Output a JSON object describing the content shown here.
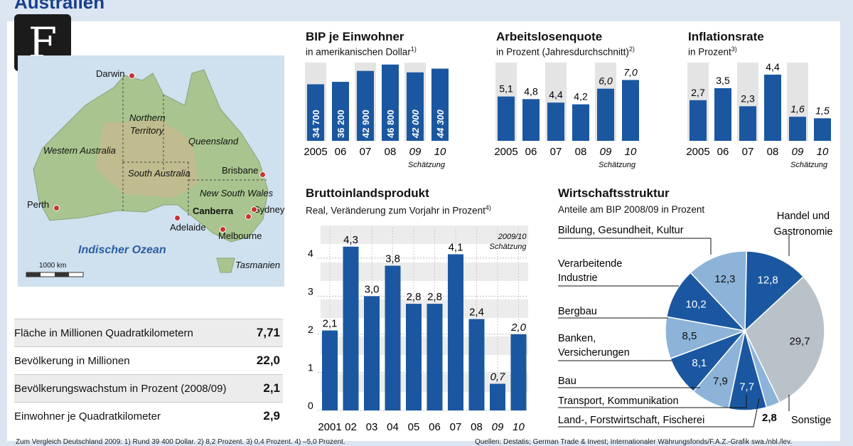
{
  "header": {
    "title": "Australien",
    "logo_letter": "F"
  },
  "map": {
    "labels": {
      "darwin": "Darwin",
      "northern": "Northern",
      "territory": "Territory",
      "queensland": "Queensland",
      "western": "Western Australia",
      "south": "South Australia",
      "brisbane": "Brisbane",
      "nsw": "New South Wales",
      "perth": "Perth",
      "canberra": "Canberra",
      "sydney": "Sydney",
      "adelaide": "Adelaide",
      "melbourne": "Melbourne",
      "ocean": "Indischer Ozean",
      "tasmanien": "Tasmanien",
      "scale": "1000 km"
    }
  },
  "facts": [
    {
      "label": "Fläche in Millionen Quadratkilometern",
      "value": "7,71"
    },
    {
      "label": "Bevölkerung in Millionen",
      "value": "22,0"
    },
    {
      "label": "Bevölkerungswachstum in Prozent (2008/09)",
      "value": "2,1"
    },
    {
      "label": "Einwohner je Quadratkilometer",
      "value": "2,9"
    }
  ],
  "chart_data": [
    {
      "type": "bar",
      "title": "BIP je Einwohner",
      "subtitle": "in amerikanischen Dollar",
      "footnote_mark": "1)",
      "categories": [
        "2005",
        "06",
        "07",
        "08",
        "09",
        "10"
      ],
      "values": [
        34700,
        36200,
        42900,
        46800,
        42000,
        44300
      ],
      "labels": [
        "34 700",
        "36 200",
        "42 900",
        "46 800",
        "42 000",
        "44 300"
      ],
      "estimate_label": "Schätzung",
      "ylim": [
        0,
        48000
      ]
    },
    {
      "type": "bar",
      "title": "Arbeitslosenquote",
      "subtitle": "in Prozent (Jahresdurchschnitt)",
      "footnote_mark": "2)",
      "categories": [
        "2005",
        "06",
        "07",
        "08",
        "09",
        "10"
      ],
      "values": [
        5.1,
        4.8,
        4.4,
        4.2,
        6.0,
        7.0
      ],
      "labels": [
        "5,1",
        "4,8",
        "4,4",
        "4,2",
        "6,0",
        "7,0"
      ],
      "estimate_label": "Schätzung",
      "ylim": [
        0,
        9
      ]
    },
    {
      "type": "bar",
      "title": "Inflationsrate",
      "subtitle": "in Prozent",
      "footnote_mark": "3)",
      "categories": [
        "2005",
        "06",
        "07",
        "08",
        "09",
        "10"
      ],
      "values": [
        2.7,
        3.5,
        2.3,
        4.4,
        1.6,
        1.5
      ],
      "labels": [
        "2,7",
        "3,5",
        "2,3",
        "4,4",
        "1,6",
        "1,5"
      ],
      "estimate_label": "Schätzung",
      "ylim": [
        0,
        5.2
      ]
    },
    {
      "type": "bar",
      "title": "Bruttoinlandsprodukt",
      "subtitle": "Real, Veränderung zum Vorjahr in Prozent",
      "footnote_mark": "4)",
      "categories": [
        "2001",
        "02",
        "03",
        "04",
        "05",
        "06",
        "07",
        "08",
        "09",
        "10"
      ],
      "values": [
        2.1,
        4.3,
        3.0,
        3.8,
        2.8,
        2.8,
        4.1,
        2.4,
        0.7,
        2.0
      ],
      "labels": [
        "2,1",
        "4,3",
        "3,0",
        "3,8",
        "2,8",
        "2,8",
        "4,1",
        "2,4",
        "0,7",
        "2,0"
      ],
      "yticks": [
        "0",
        "1",
        "2",
        "3",
        "4"
      ],
      "ylim": [
        0,
        4.8
      ],
      "estimate_label_1": "2009/10",
      "estimate_label_2": "Schätzung"
    },
    {
      "type": "pie",
      "title": "Wirtschaftsstruktur",
      "subtitle": "Anteile am BIP 2008/09 in Prozent",
      "slices": [
        {
          "label": "Handel und Gastronomie",
          "value": 12.8,
          "text": "12,8",
          "color": "#1a57a0"
        },
        {
          "label": "Sonstige",
          "value": 29.7,
          "text": "29,7",
          "color": "#b9c1c9"
        },
        {
          "label": "Land-, Forstwirtschaft, Fischerei",
          "value": 2.8,
          "text": "2,8",
          "color": "#8db3d9"
        },
        {
          "label": "Transport, Kommunikation",
          "value": 7.7,
          "text": "7,7",
          "color": "#1a57a0"
        },
        {
          "label": "Bau",
          "value": 7.9,
          "text": "7,9",
          "color": "#8db3d9"
        },
        {
          "label": "Banken, Versicherungen",
          "value": 8.1,
          "text": "8,1",
          "color": "#1a57a0"
        },
        {
          "label": "Bergbau",
          "value": 8.5,
          "text": "8,5",
          "color": "#8db3d9"
        },
        {
          "label": "Verarbeitende Industrie",
          "value": 10.2,
          "text": "10,2",
          "color": "#1a57a0"
        },
        {
          "label": "Bildung, Gesundheit, Kultur",
          "value": 12.3,
          "text": "12,3",
          "color": "#8db3d9"
        }
      ]
    }
  ],
  "pie_labels": {
    "handel1": "Handel und",
    "handel2": "Gastronomie",
    "bildung": "Bildung, Gesundheit, Kultur",
    "verarb1": "Verarbeitende",
    "verarb2": "Industrie",
    "bergbau": "Bergbau",
    "banken1": "Banken,",
    "banken2": "Versicherungen",
    "bau": "Bau",
    "transport": "Transport, Kommunikation",
    "land": "Land-, Forstwirtschaft, Fischerei",
    "sonstige": "Sonstige"
  },
  "footer": {
    "left": "Zum Vergleich Deutschland 2009: 1) Rund 39 400 Dollar. 2) 8,2 Prozent. 3) 0,4 Prozent. 4) –5,0 Prozent.",
    "right": "Quellen: Destatis; German Trade & Invest; Internationaler Währungsfonds/F.A.Z.-Grafik swa./nbl./lev."
  },
  "colors": {
    "bar": "#1a57a0",
    "bar_light": "#ffffff",
    "band": "#e4e4e4",
    "title": "#1b3f8b"
  }
}
